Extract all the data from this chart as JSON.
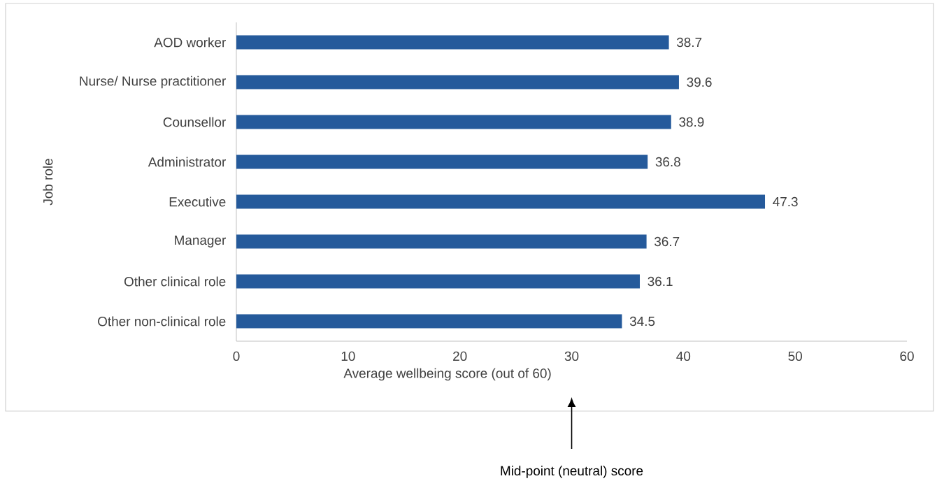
{
  "chart_data": {
    "type": "bar",
    "orientation": "horizontal",
    "categories": [
      "AOD worker",
      "Nurse/ Nurse practitioner",
      "Counsellor",
      "Administrator",
      "Executive",
      "Manager",
      "Other clinical role",
      "Other non-clinical role"
    ],
    "values": [
      38.7,
      39.6,
      38.9,
      36.8,
      47.3,
      36.7,
      36.1,
      34.5
    ],
    "color": "#255a9b",
    "xlim": [
      0,
      60
    ],
    "xticks": [
      0,
      10,
      20,
      30,
      40,
      50,
      60
    ],
    "xlabel": "Average wellbeing score (out of 60)",
    "ylabel": "Job role",
    "data_labels": true,
    "annotations": [
      "Mid-point (neutral) score"
    ]
  }
}
